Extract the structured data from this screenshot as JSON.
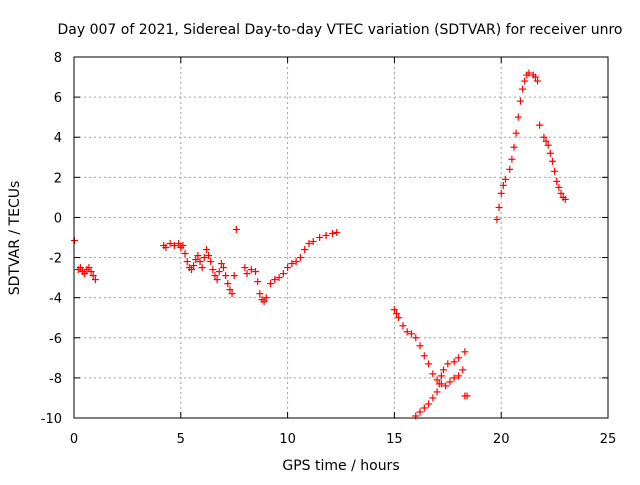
{
  "chart_data": {
    "type": "scatter",
    "title": "Day 007 of 2021, Sidereal Day-to-day VTEC variation (SDTVAR) for receiver unro",
    "xlabel": "GPS time / hours",
    "ylabel": "SDTVAR / TECUs",
    "xlim": [
      0,
      25
    ],
    "ylim": [
      -10,
      8
    ],
    "xticks": [
      "0",
      "5",
      "10",
      "15",
      "20",
      "25"
    ],
    "yticks": [
      "-10",
      "-8",
      "-6",
      "-4",
      "-2",
      "0",
      "2",
      "4",
      "6",
      "8"
    ],
    "grid": true,
    "marker": "+",
    "color": "#ff0000",
    "series": [
      {
        "name": "SDTVAR",
        "points": [
          [
            0.02,
            -1.15
          ],
          [
            0.2,
            -2.6
          ],
          [
            0.3,
            -2.5
          ],
          [
            0.4,
            -2.7
          ],
          [
            0.5,
            -2.8
          ],
          [
            0.6,
            -2.6
          ],
          [
            0.7,
            -2.5
          ],
          [
            0.8,
            -2.7
          ],
          [
            0.9,
            -2.9
          ],
          [
            1.0,
            -3.1
          ],
          [
            4.2,
            -1.4
          ],
          [
            4.3,
            -1.5
          ],
          [
            4.5,
            -1.3
          ],
          [
            4.7,
            -1.4
          ],
          [
            4.9,
            -1.3
          ],
          [
            5.0,
            -1.5
          ],
          [
            5.1,
            -1.4
          ],
          [
            5.2,
            -1.8
          ],
          [
            5.3,
            -2.2
          ],
          [
            5.4,
            -2.5
          ],
          [
            5.5,
            -2.6
          ],
          [
            5.6,
            -2.4
          ],
          [
            5.7,
            -2.1
          ],
          [
            5.8,
            -1.9
          ],
          [
            5.9,
            -2.2
          ],
          [
            6.0,
            -2.5
          ],
          [
            6.1,
            -2.0
          ],
          [
            6.2,
            -1.6
          ],
          [
            6.3,
            -1.9
          ],
          [
            6.4,
            -2.2
          ],
          [
            6.5,
            -2.6
          ],
          [
            6.6,
            -2.9
          ],
          [
            6.7,
            -3.1
          ],
          [
            6.8,
            -2.7
          ],
          [
            6.9,
            -2.3
          ],
          [
            7.0,
            -2.5
          ],
          [
            7.1,
            -2.9
          ],
          [
            7.2,
            -3.3
          ],
          [
            7.3,
            -3.6
          ],
          [
            7.4,
            -3.8
          ],
          [
            7.5,
            -2.9
          ],
          [
            7.6,
            -0.6
          ],
          [
            8.0,
            -2.5
          ],
          [
            8.1,
            -2.8
          ],
          [
            8.3,
            -2.6
          ],
          [
            8.5,
            -2.7
          ],
          [
            8.6,
            -3.2
          ],
          [
            8.7,
            -3.8
          ],
          [
            8.8,
            -4.1
          ],
          [
            8.9,
            -4.2
          ],
          [
            9.0,
            -4.0
          ],
          [
            9.2,
            -3.3
          ],
          [
            9.4,
            -3.1
          ],
          [
            9.6,
            -3.0
          ],
          [
            9.8,
            -2.8
          ],
          [
            10.0,
            -2.5
          ],
          [
            10.2,
            -2.3
          ],
          [
            10.4,
            -2.2
          ],
          [
            10.6,
            -2.0
          ],
          [
            10.8,
            -1.6
          ],
          [
            11.0,
            -1.3
          ],
          [
            11.2,
            -1.2
          ],
          [
            11.5,
            -1.0
          ],
          [
            11.8,
            -0.9
          ],
          [
            12.1,
            -0.8
          ],
          [
            12.3,
            -0.75
          ],
          [
            15.0,
            -4.6
          ],
          [
            15.1,
            -4.8
          ],
          [
            15.2,
            -5.0
          ],
          [
            15.4,
            -5.4
          ],
          [
            15.6,
            -5.7
          ],
          [
            15.8,
            -5.8
          ],
          [
            16.0,
            -6.0
          ],
          [
            16.2,
            -6.4
          ],
          [
            16.4,
            -6.9
          ],
          [
            16.6,
            -7.3
          ],
          [
            16.8,
            -7.8
          ],
          [
            17.0,
            -8.1
          ],
          [
            17.2,
            -8.3
          ],
          [
            17.4,
            -8.4
          ],
          [
            17.6,
            -8.2
          ],
          [
            17.8,
            -8.0
          ],
          [
            18.0,
            -7.9
          ],
          [
            18.2,
            -7.6
          ],
          [
            18.3,
            -6.7
          ],
          [
            16.0,
            -9.9
          ],
          [
            16.2,
            -9.7
          ],
          [
            16.4,
            -9.5
          ],
          [
            16.6,
            -9.3
          ],
          [
            16.8,
            -9.0
          ],
          [
            17.0,
            -8.7
          ],
          [
            17.1,
            -8.3
          ],
          [
            17.2,
            -7.9
          ],
          [
            17.3,
            -7.6
          ],
          [
            17.5,
            -7.3
          ],
          [
            17.8,
            -7.2
          ],
          [
            18.0,
            -7.0
          ],
          [
            18.3,
            -8.9
          ],
          [
            18.4,
            -8.9
          ],
          [
            19.8,
            -0.1
          ],
          [
            19.9,
            0.5
          ],
          [
            20.0,
            1.2
          ],
          [
            20.1,
            1.6
          ],
          [
            20.2,
            1.9
          ],
          [
            20.4,
            2.4
          ],
          [
            20.5,
            2.9
          ],
          [
            20.6,
            3.5
          ],
          [
            20.7,
            4.2
          ],
          [
            20.8,
            5.0
          ],
          [
            20.9,
            5.8
          ],
          [
            21.0,
            6.4
          ],
          [
            21.1,
            6.8
          ],
          [
            21.2,
            7.1
          ],
          [
            21.3,
            7.2
          ],
          [
            21.5,
            7.1
          ],
          [
            21.6,
            7.0
          ],
          [
            21.7,
            6.8
          ],
          [
            21.8,
            4.6
          ],
          [
            22.0,
            4.0
          ],
          [
            22.1,
            3.8
          ],
          [
            22.2,
            3.6
          ],
          [
            22.3,
            3.2
          ],
          [
            22.4,
            2.8
          ],
          [
            22.5,
            2.3
          ],
          [
            22.6,
            1.8
          ],
          [
            22.7,
            1.5
          ],
          [
            22.8,
            1.2
          ],
          [
            22.9,
            1.0
          ],
          [
            23.0,
            0.9
          ]
        ]
      }
    ]
  }
}
